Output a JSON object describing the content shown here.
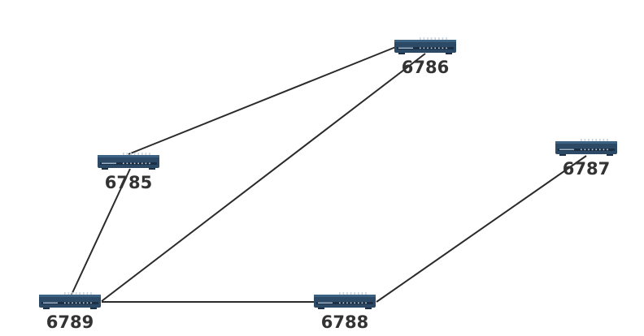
{
  "diagram": {
    "type": "network-topology",
    "nodes": [
      {
        "id": "6786",
        "label": "6786",
        "icon": "network-switch-icon"
      },
      {
        "id": "6785",
        "label": "6785",
        "icon": "network-switch-icon"
      },
      {
        "id": "6787",
        "label": "6787",
        "icon": "network-switch-icon"
      },
      {
        "id": "6789",
        "label": "6789",
        "icon": "network-switch-icon"
      },
      {
        "id": "6788",
        "label": "6788",
        "icon": "network-switch-icon"
      }
    ],
    "edges": [
      {
        "from": "6785",
        "to": "6786"
      },
      {
        "from": "6785",
        "to": "6789"
      },
      {
        "from": "6789",
        "to": "6786"
      },
      {
        "from": "6789",
        "to": "6788"
      },
      {
        "from": "6788",
        "to": "6787"
      }
    ],
    "colors": {
      "switch_body": "#2c4a66",
      "switch_dark": "#1b3046",
      "edge": "#2b2b2b",
      "label": "#333333"
    }
  }
}
